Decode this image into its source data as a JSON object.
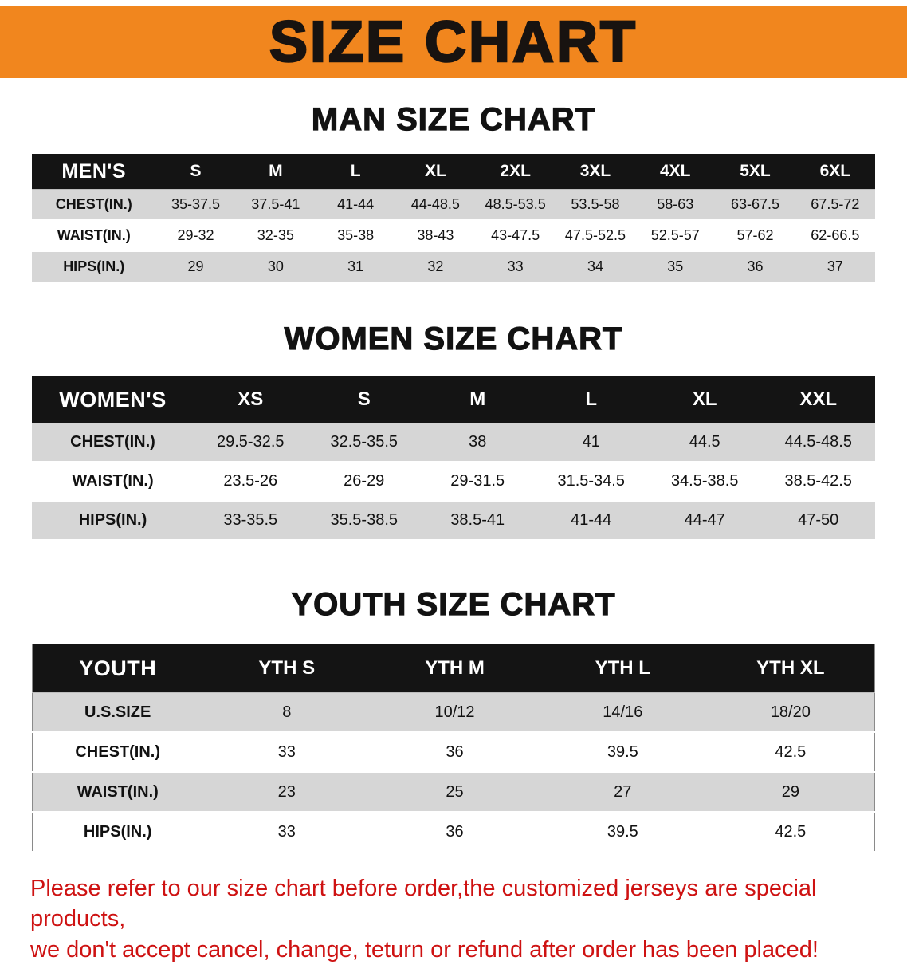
{
  "banner": {
    "title": "SIZE CHART",
    "bg_color": "#F1861E",
    "text_color": "#181310"
  },
  "sections": [
    {
      "id": "men",
      "heading": "MAN SIZE CHART",
      "table": {
        "header": [
          "MEN'S",
          "S",
          "M",
          "L",
          "XL",
          "2XL",
          "3XL",
          "4XL",
          "5XL",
          "6XL"
        ],
        "rows": [
          [
            "CHEST(IN.)",
            "35-37.5",
            "37.5-41",
            "41-44",
            "44-48.5",
            "48.5-53.5",
            "53.5-58",
            "58-63",
            "63-67.5",
            "67.5-72"
          ],
          [
            "WAIST(IN.)",
            "29-32",
            "32-35",
            "35-38",
            "38-43",
            "43-47.5",
            "47.5-52.5",
            "52.5-57",
            "57-62",
            "62-66.5"
          ],
          [
            "HIPS(IN.)",
            "29",
            "30",
            "31",
            "32",
            "33",
            "34",
            "35",
            "36",
            "37"
          ]
        ]
      }
    },
    {
      "id": "women",
      "heading": "WOMEN SIZE CHART",
      "table": {
        "header": [
          "WOMEN'S",
          "XS",
          "S",
          "M",
          "L",
          "XL",
          "XXL"
        ],
        "rows": [
          [
            "CHEST(IN.)",
            "29.5-32.5",
            "32.5-35.5",
            "38",
            "41",
            "44.5",
            "44.5-48.5"
          ],
          [
            "WAIST(IN.)",
            "23.5-26",
            "26-29",
            "29-31.5",
            "31.5-34.5",
            "34.5-38.5",
            "38.5-42.5"
          ],
          [
            "HIPS(IN.)",
            "33-35.5",
            "35.5-38.5",
            "38.5-41",
            "41-44",
            "44-47",
            "47-50"
          ]
        ]
      }
    },
    {
      "id": "youth",
      "heading": "YOUTH SIZE CHART",
      "table": {
        "header": [
          "YOUTH",
          "YTH S",
          "YTH M",
          "YTH L",
          "YTH XL"
        ],
        "rows": [
          [
            "U.S.SIZE",
            "8",
            "10/12",
            "14/16",
            "18/20"
          ],
          [
            "CHEST(IN.)",
            "33",
            "36",
            "39.5",
            "42.5"
          ],
          [
            "WAIST(IN.)",
            "23",
            "25",
            "27",
            "29"
          ],
          [
            "HIPS(IN.)",
            "33",
            "36",
            "39.5",
            "42.5"
          ]
        ]
      }
    }
  ],
  "footer": {
    "text_color": "#CE1212",
    "lines": [
      "Please refer to our size chart before order,the customized jerseys are special products,",
      "we don't accept cancel, change, teturn or refund after order has been placed!"
    ]
  }
}
